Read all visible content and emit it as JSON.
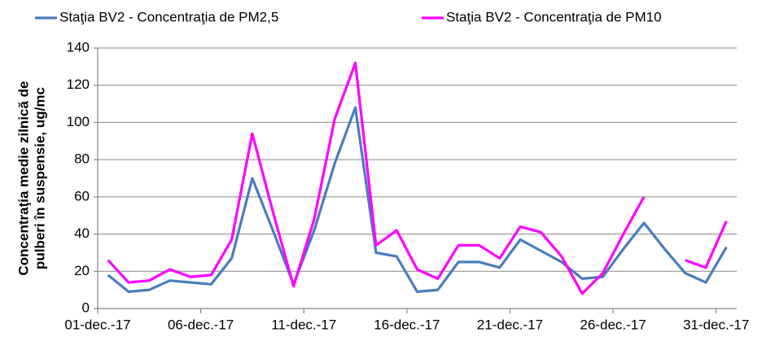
{
  "chart_data": {
    "type": "line",
    "ylabel": [
      "Concentraţia medie zilnică de",
      "pulberi în suspensie, ug/mc"
    ],
    "categories": [
      "01-dec.-17",
      null,
      null,
      null,
      null,
      "06-dec.-17",
      null,
      null,
      null,
      null,
      "11-dec.-17",
      null,
      null,
      null,
      null,
      "16-dec.-17",
      null,
      null,
      null,
      null,
      "21-dec.-17",
      null,
      null,
      null,
      null,
      "26-dec.-17",
      null,
      null,
      null,
      null,
      "31-dec.-17"
    ],
    "series": [
      {
        "name": "Staţia BV2 - Concentraţia de PM2,5",
        "color": "#4a7ebb",
        "values": [
          18,
          9,
          10,
          15,
          14,
          13,
          27,
          70,
          42,
          13,
          42,
          78,
          108,
          30,
          28,
          9,
          10,
          25,
          25,
          22,
          37,
          31,
          25,
          16,
          17,
          32,
          46,
          32,
          19,
          14,
          33
        ]
      },
      {
        "name": "Staţia BV2 - Concentraţia de PM10",
        "color": "#ff00ff",
        "values": [
          26,
          14,
          15,
          21,
          17,
          18,
          37,
          94,
          52,
          12,
          48,
          102,
          132,
          34,
          42,
          21,
          16,
          34,
          34,
          27,
          44,
          41,
          28,
          8,
          19,
          40,
          60,
          null,
          26,
          22,
          47
        ]
      }
    ],
    "ylim": [
      0,
      140
    ],
    "yticks": [
      0,
      20,
      40,
      60,
      80,
      100,
      120,
      140
    ],
    "grid": true,
    "legend": "top"
  }
}
